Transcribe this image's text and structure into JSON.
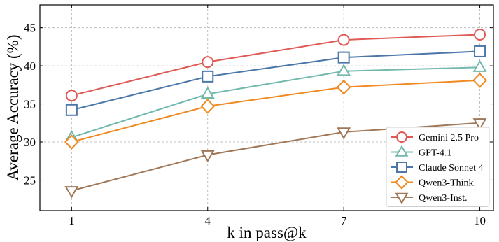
{
  "chart_data": {
    "type": "line",
    "x": [
      1,
      4,
      7,
      10
    ],
    "xlabel": "k in pass@k",
    "ylabel": "Average Accuracy (%)",
    "xlim": [
      0.3,
      10.3
    ],
    "ylim": [
      21,
      48
    ],
    "xticks": [
      1,
      4,
      7,
      10
    ],
    "yticks": [
      25,
      30,
      35,
      40,
      45
    ],
    "grid": true,
    "legend_position": "lower-right",
    "series": [
      {
        "name": "Gemini 2.5 Pro",
        "values": [
          36.1,
          40.5,
          43.4,
          44.1
        ],
        "color": "#e05a55",
        "marker": "circle"
      },
      {
        "name": "GPT-4.1",
        "values": [
          30.6,
          36.3,
          39.3,
          39.8
        ],
        "color": "#72b8ad",
        "marker": "triangle-up"
      },
      {
        "name": "Claude Sonnet 4",
        "values": [
          34.2,
          38.6,
          41.1,
          41.9
        ],
        "color": "#4a76a8",
        "marker": "square"
      },
      {
        "name": "Qwen3-Think.",
        "values": [
          30.0,
          34.7,
          37.2,
          38.1
        ],
        "color": "#f0891f",
        "marker": "diamond"
      },
      {
        "name": "Qwen3-Inst.",
        "values": [
          23.6,
          28.3,
          31.3,
          32.5
        ],
        "color": "#a07757",
        "marker": "triangle-down"
      }
    ]
  }
}
